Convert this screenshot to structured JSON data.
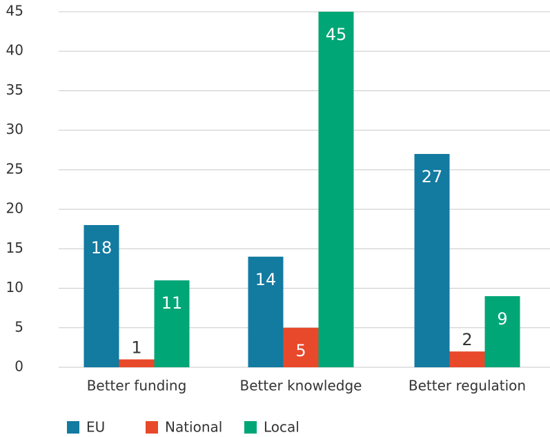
{
  "chart_data": {
    "type": "bar",
    "categories": [
      "Better funding",
      "Better knowledge",
      "Better regulation"
    ],
    "series": [
      {
        "name": "EU",
        "color": "#137aa0",
        "values": [
          18,
          14,
          27
        ]
      },
      {
        "name": "National",
        "color": "#e8492b",
        "values": [
          1,
          5,
          2
        ]
      },
      {
        "name": "Local",
        "color": "#00a676",
        "values": [
          11,
          45,
          9
        ]
      }
    ],
    "ylim": [
      0,
      45
    ],
    "yticks": [
      0,
      5,
      10,
      15,
      20,
      25,
      30,
      35,
      40,
      45
    ],
    "grid": true,
    "legend": "bottom"
  }
}
